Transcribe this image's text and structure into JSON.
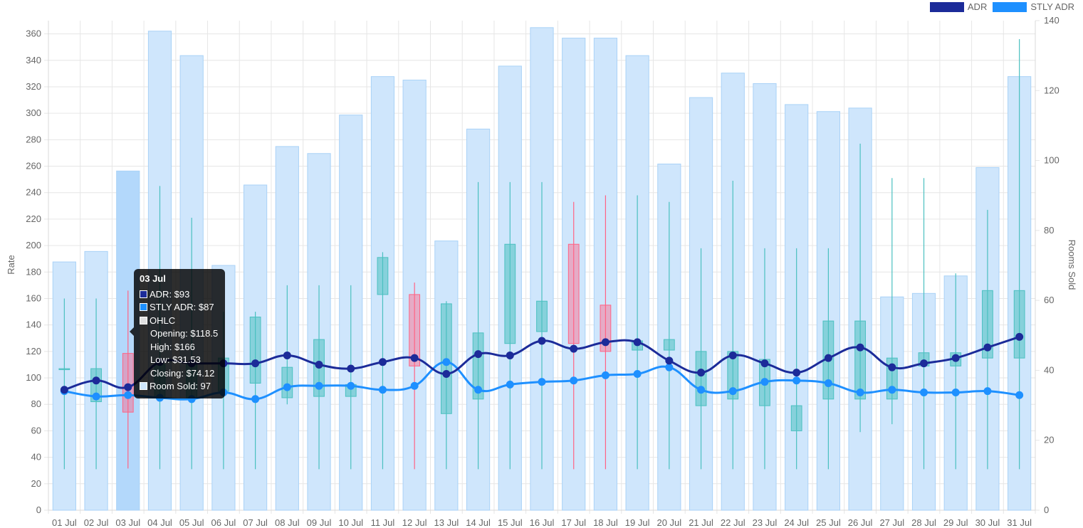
{
  "chart_data": {
    "type": "bar",
    "categories": [
      "01 Jul",
      "02 Jul",
      "03 Jul",
      "04 Jul",
      "05 Jul",
      "06 Jul",
      "07 Jul",
      "08 Jul",
      "09 Jul",
      "10 Jul",
      "11 Jul",
      "12 Jul",
      "13 Jul",
      "14 Jul",
      "15 Jul",
      "16 Jul",
      "17 Jul",
      "18 Jul",
      "19 Jul",
      "20 Jul",
      "21 Jul",
      "22 Jul",
      "23 Jul",
      "24 Jul",
      "25 Jul",
      "26 Jul",
      "27 Jul",
      "28 Jul",
      "29 Jul",
      "30 Jul",
      "31 Jul"
    ],
    "ylabel": "Rate",
    "y2label": "Rooms Sold",
    "ylim": [
      0,
      370
    ],
    "y2lim": [
      0,
      140
    ],
    "yticks": [
      0,
      20,
      40,
      60,
      80,
      100,
      120,
      140,
      160,
      180,
      200,
      220,
      240,
      260,
      280,
      300,
      320,
      340,
      360
    ],
    "y2ticks": [
      0,
      20,
      40,
      60,
      80,
      100,
      120,
      140
    ],
    "grid": true,
    "legend_position": "top-right",
    "series": [
      {
        "name": "ADR",
        "type": "line",
        "axis": "left",
        "color": "#1c2b99",
        "values": [
          91,
          98,
          93,
          112,
          111,
          111,
          111,
          117,
          110,
          107,
          112,
          115,
          103,
          118,
          117,
          128,
          122,
          127,
          127,
          113,
          104,
          117,
          111,
          104,
          115,
          123,
          108,
          111,
          115,
          123,
          131
        ]
      },
      {
        "name": "STLY ADR",
        "type": "line",
        "axis": "left",
        "color": "#1e90ff",
        "values": [
          90,
          86,
          87,
          85,
          84,
          89,
          84,
          93,
          94,
          94,
          91,
          94,
          112,
          91,
          95,
          97,
          98,
          102,
          103,
          108,
          91,
          90,
          97,
          98,
          96,
          89,
          91,
          89,
          89,
          90,
          87
        ]
      },
      {
        "name": "Rooms Sold",
        "type": "bar",
        "axis": "right",
        "color": "#cfe6fc",
        "values": [
          71,
          74,
          97,
          137,
          130,
          70,
          93,
          104,
          102,
          113,
          124,
          123,
          77,
          109,
          127,
          138,
          135,
          135,
          130,
          99,
          118,
          125,
          122,
          116,
          114,
          115,
          61,
          62,
          67,
          98,
          124
        ]
      },
      {
        "name": "OHLC",
        "type": "candlestick",
        "axis": "left",
        "open": [
          107,
          82,
          118.5,
          85,
          85,
          90,
          96,
          85,
          86,
          86,
          163,
          163,
          73,
          84,
          126,
          135,
          201,
          155,
          121,
          121,
          79,
          84,
          79,
          60,
          84,
          84,
          84,
          109,
          109,
          115,
          115
        ],
        "high": [
          160,
          160,
          166,
          245,
          221,
          150,
          150,
          170,
          170,
          170,
          195,
          172,
          158,
          248,
          248,
          248,
          233,
          238,
          238,
          233,
          198,
          249,
          198,
          198,
          198,
          277,
          251,
          251,
          179,
          227,
          356
        ],
        "low": [
          31,
          31,
          31.53,
          31,
          31,
          31,
          31,
          80,
          31,
          31,
          31,
          31,
          31,
          31,
          31,
          31,
          31,
          31,
          31,
          31,
          31,
          31,
          31,
          31,
          31,
          59,
          65,
          31,
          31,
          31,
          31
        ],
        "close": [
          107,
          107,
          74.12,
          110,
          110,
          115,
          146,
          108,
          129,
          95,
          191,
          109,
          156,
          134,
          201,
          158,
          126,
          120,
          128,
          129,
          120,
          120,
          114,
          79,
          143,
          143,
          115,
          119,
          119,
          166,
          166
        ]
      }
    ],
    "highlight_category": "03 Jul"
  },
  "legend": {
    "items": [
      {
        "label": "ADR",
        "color": "#1c2b99"
      },
      {
        "label": "STLY ADR",
        "color": "#1e90ff"
      }
    ]
  },
  "tooltip": {
    "title": "03 Jul",
    "adr": "ADR: $93",
    "adr_color": "#1c2b99",
    "stly": "STLY ADR: $87",
    "stly_color": "#1e90ff",
    "ohlc": "OHLC",
    "ohlc_color": "#e0e0e0",
    "opening": "Opening: $118.5",
    "high": "High: $166",
    "low": "Low: $31.53",
    "closing": "Closing: $74.12",
    "rooms": "Room Sold: 97",
    "rooms_color": "#cfe6fc"
  }
}
